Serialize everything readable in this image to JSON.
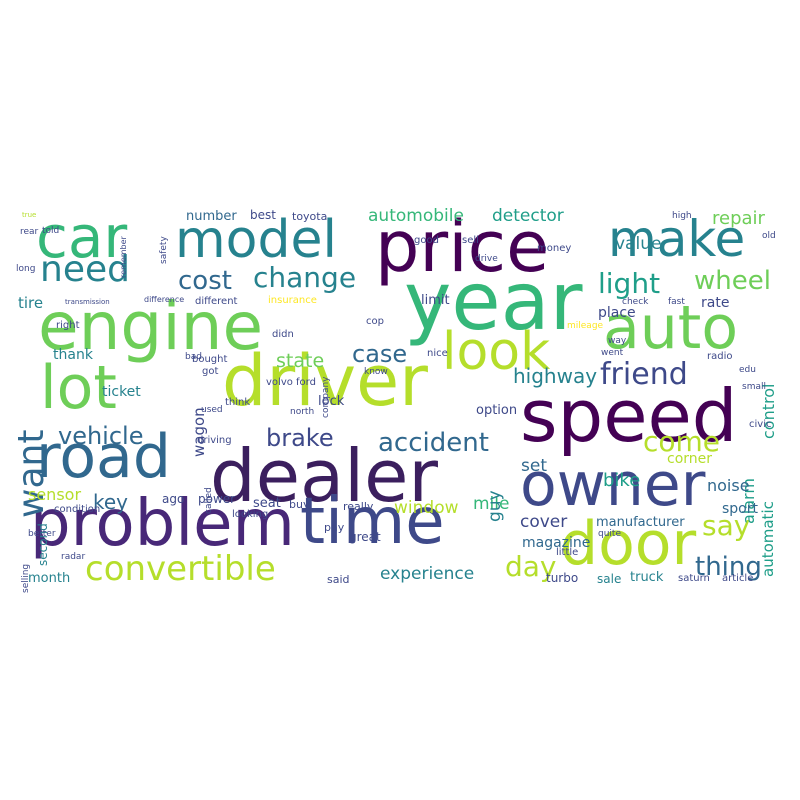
{
  "palette": [
    "#440154",
    "#482878",
    "#3e4989",
    "#31688e",
    "#26828e",
    "#1f9e89",
    "#35b779",
    "#6ece58",
    "#b5de2b",
    "#fde725"
  ],
  "words": [
    {
      "text": "speed",
      "color": "#440154"
    },
    {
      "text": "dealer",
      "color": "#3b1f5e"
    },
    {
      "text": "owner",
      "color": "#3e4989"
    },
    {
      "text": "year",
      "color": "#35b779"
    },
    {
      "text": "price",
      "color": "#440154"
    },
    {
      "text": "driver",
      "color": "#b5de2b"
    },
    {
      "text": "problem",
      "color": "#482878"
    },
    {
      "text": "time",
      "color": "#3e4989"
    },
    {
      "text": "lot",
      "color": "#6ece58"
    },
    {
      "text": "engine",
      "color": "#6ece58"
    },
    {
      "text": "road",
      "color": "#31688e"
    },
    {
      "text": "auto",
      "color": "#6ece58"
    },
    {
      "text": "door",
      "color": "#b5de2b"
    },
    {
      "text": "car",
      "color": "#35b779"
    },
    {
      "text": "model",
      "color": "#26828e"
    },
    {
      "text": "make",
      "color": "#26828e"
    },
    {
      "text": "look",
      "color": "#b5de2b"
    },
    {
      "text": "want",
      "color": "#31688e"
    },
    {
      "text": "need",
      "color": "#26828e"
    },
    {
      "text": "convertible",
      "color": "#b5de2b"
    },
    {
      "text": "change",
      "color": "#26828e"
    },
    {
      "text": "cost",
      "color": "#31688e"
    },
    {
      "text": "light",
      "color": "#1f9e89"
    },
    {
      "text": "friend",
      "color": "#3e4989"
    },
    {
      "text": "accident",
      "color": "#31688e"
    },
    {
      "text": "come",
      "color": "#b5de2b"
    },
    {
      "text": "vehicle",
      "color": "#31688e"
    },
    {
      "text": "brake",
      "color": "#3e4989"
    },
    {
      "text": "case",
      "color": "#31688e"
    },
    {
      "text": "day",
      "color": "#b5de2b"
    },
    {
      "text": "say",
      "color": "#b5de2b"
    },
    {
      "text": "thing",
      "color": "#31688e"
    },
    {
      "text": "wheel",
      "color": "#6ece58"
    },
    {
      "text": "automobile",
      "color": "#35b779"
    },
    {
      "text": "detector",
      "color": "#1f9e89"
    },
    {
      "text": "repair",
      "color": "#6ece58"
    },
    {
      "text": "value",
      "color": "#26828e"
    },
    {
      "text": "highway",
      "color": "#26828e"
    },
    {
      "text": "state",
      "color": "#6ece58"
    },
    {
      "text": "window",
      "color": "#b5de2b"
    },
    {
      "text": "experience",
      "color": "#26828e"
    },
    {
      "text": "mile",
      "color": "#35b779"
    },
    {
      "text": "set",
      "color": "#31688e"
    },
    {
      "text": "guy",
      "color": "#26828e"
    },
    {
      "text": "sensor",
      "color": "#b5de2b"
    },
    {
      "text": "key",
      "color": "#31688e"
    },
    {
      "text": "bike",
      "color": "#1f9e89"
    },
    {
      "text": "cover",
      "color": "#3e4989"
    },
    {
      "text": "control",
      "color": "#1f9e89"
    },
    {
      "text": "automatic",
      "color": "#1f9e89"
    },
    {
      "text": "alarm",
      "color": "#1f9e89"
    },
    {
      "text": "wagon",
      "color": "#3e4989"
    },
    {
      "text": "noise",
      "color": "#31688e"
    },
    {
      "text": "tire",
      "color": "#26828e"
    },
    {
      "text": "thank",
      "color": "#26828e"
    },
    {
      "text": "ticket",
      "color": "#26828e"
    },
    {
      "text": "magazine",
      "color": "#31688e"
    },
    {
      "text": "manufacturer",
      "color": "#31688e"
    },
    {
      "text": "sport",
      "color": "#31688e"
    },
    {
      "text": "number",
      "color": "#31688e"
    },
    {
      "text": "best",
      "color": "#3e4989"
    },
    {
      "text": "toyota",
      "color": "#3e4989"
    },
    {
      "text": "month",
      "color": "#26828e"
    },
    {
      "text": "second",
      "color": "#26828e"
    },
    {
      "text": "option",
      "color": "#3e4989"
    },
    {
      "text": "lock",
      "color": "#3e4989"
    },
    {
      "text": "limit",
      "color": "#3e4989"
    },
    {
      "text": "place",
      "color": "#3e4989"
    },
    {
      "text": "rate",
      "color": "#3e4989"
    },
    {
      "text": "sale",
      "color": "#26828e"
    },
    {
      "text": "truck",
      "color": "#26828e"
    },
    {
      "text": "corner",
      "color": "#b5de2b"
    },
    {
      "text": "ago",
      "color": "#3e4989"
    },
    {
      "text": "power",
      "color": "#3e4989"
    },
    {
      "text": "seat",
      "color": "#3e4989"
    },
    {
      "text": "buy",
      "color": "#3e4989"
    },
    {
      "text": "really",
      "color": "#3e4989"
    },
    {
      "text": "great",
      "color": "#3e4989"
    },
    {
      "text": "said",
      "color": "#3e4989"
    },
    {
      "text": "turbo",
      "color": "#3e4989"
    },
    {
      "text": "saturn",
      "color": "#3e4989"
    },
    {
      "text": "article",
      "color": "#3e4989"
    },
    {
      "text": "volvo ford",
      "color": "#3e4989"
    },
    {
      "text": "pay",
      "color": "#3e4989"
    },
    {
      "text": "company",
      "color": "#3e4989"
    },
    {
      "text": "civic",
      "color": "#3e4989"
    },
    {
      "text": "radio",
      "color": "#3e4989"
    },
    {
      "text": "edu",
      "color": "#3e4989"
    },
    {
      "text": "small",
      "color": "#3e4989"
    },
    {
      "text": "condition",
      "color": "#3e4989"
    },
    {
      "text": "better",
      "color": "#3e4989"
    },
    {
      "text": "selling",
      "color": "#3e4989"
    },
    {
      "text": "radar",
      "color": "#3e4989"
    },
    {
      "text": "told",
      "color": "#3e4989"
    },
    {
      "text": "rear",
      "color": "#3e4989"
    },
    {
      "text": "long",
      "color": "#3e4989"
    },
    {
      "text": "right",
      "color": "#3e4989"
    },
    {
      "text": "good",
      "color": "#3e4989"
    },
    {
      "text": "sell",
      "color": "#3e4989"
    },
    {
      "text": "money",
      "color": "#3e4989"
    },
    {
      "text": "drive",
      "color": "#3e4989"
    },
    {
      "text": "high",
      "color": "#3e4989"
    },
    {
      "text": "old",
      "color": "#3e4989"
    },
    {
      "text": "insurance",
      "color": "#fde725"
    },
    {
      "text": "different",
      "color": "#3e4989"
    },
    {
      "text": "check",
      "color": "#3e4989"
    },
    {
      "text": "fast",
      "color": "#3e4989"
    },
    {
      "text": "mileage",
      "color": "#fde725"
    },
    {
      "text": "bought",
      "color": "#3e4989"
    },
    {
      "text": "think",
      "color": "#3e4989"
    },
    {
      "text": "used",
      "color": "#3e4989"
    },
    {
      "text": "driving",
      "color": "#3e4989"
    },
    {
      "text": "bad",
      "color": "#3e4989"
    },
    {
      "text": "know",
      "color": "#3e4989"
    },
    {
      "text": "went",
      "color": "#3e4989"
    },
    {
      "text": "way",
      "color": "#3e4989"
    },
    {
      "text": "nice",
      "color": "#3e4989"
    },
    {
      "text": "called",
      "color": "#3e4989"
    },
    {
      "text": "looking",
      "color": "#3e4989"
    },
    {
      "text": "little",
      "color": "#3e4989"
    },
    {
      "text": "quite",
      "color": "#3e4989"
    },
    {
      "text": "cop",
      "color": "#3e4989"
    },
    {
      "text": "didn",
      "color": "#3e4989"
    },
    {
      "text": "got",
      "color": "#3e4989"
    },
    {
      "text": "north",
      "color": "#3e4989"
    },
    {
      "text": "safety",
      "color": "#3e4989"
    },
    {
      "text": "difference",
      "color": "#3e4989"
    },
    {
      "text": "transmission",
      "color": "#3e4989"
    },
    {
      "text": "remember",
      "color": "#3e4989"
    },
    {
      "text": "true",
      "color": "#b5de2b"
    }
  ]
}
